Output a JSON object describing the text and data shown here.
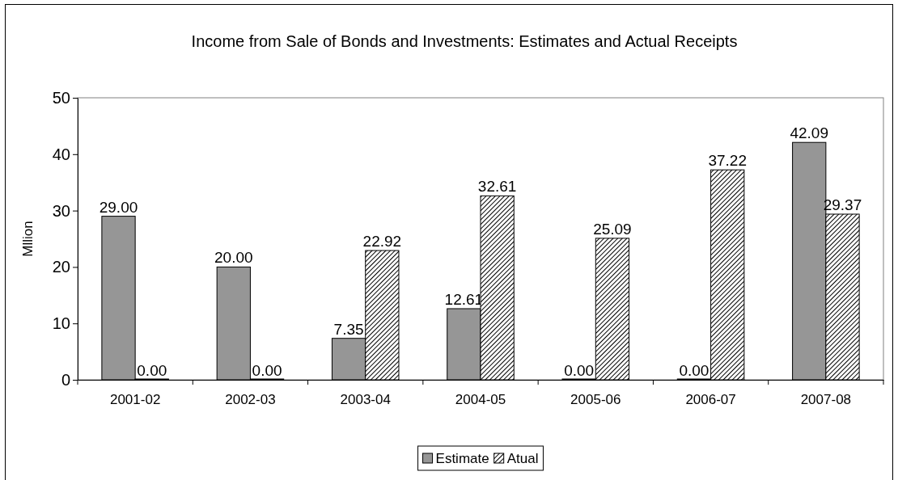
{
  "chart_data": {
    "type": "bar",
    "title": "Income from Sale of Bonds and Investments: Estimates and Actual Receipts",
    "ylabel": "Mllion",
    "categories": [
      "2001-02",
      "2002-03",
      "2003-04",
      "2004-05",
      "2005-06",
      "2006-07",
      "2007-08"
    ],
    "series": [
      {
        "name": "Estimate",
        "color": "#969696",
        "values": [
          29.0,
          20.0,
          7.35,
          12.61,
          0.0,
          0.0,
          42.09
        ],
        "value_labels": [
          "29.00",
          "20.00",
          "7.35",
          "12.61",
          "0.00",
          "0.00",
          "42.09"
        ]
      },
      {
        "name": "Atual",
        "color": "#000000",
        "values": [
          0.0,
          0.0,
          22.92,
          32.61,
          25.09,
          37.22,
          29.37
        ],
        "value_labels": [
          "0.00",
          "0.00",
          "22.92",
          "32.61",
          "25.09",
          "37.22",
          "29.37"
        ]
      }
    ],
    "ylim": [
      0,
      50
    ],
    "yticks": [
      0,
      10,
      20,
      30,
      40,
      50
    ],
    "legend": "bottom",
    "grid": false
  }
}
